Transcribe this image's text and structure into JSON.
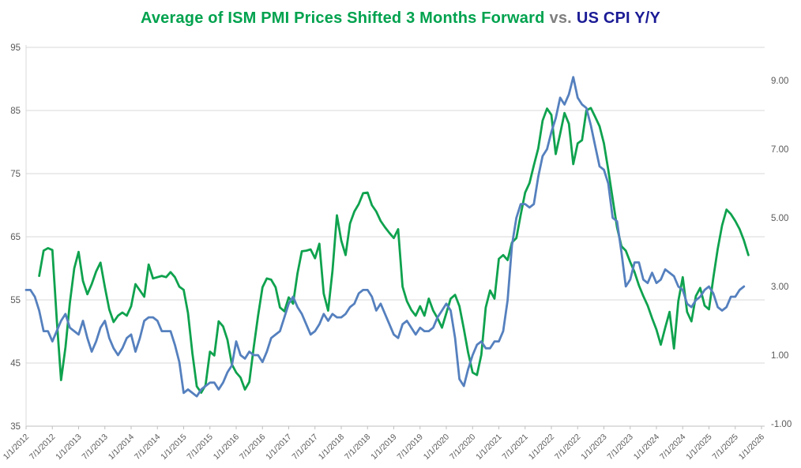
{
  "title": {
    "ism_part": "Average of ISM PMI Prices Shifted 3 Months Forward",
    "vs_part": "vs.",
    "cpi_part": "US CPI Y/Y"
  },
  "colors": {
    "ism_line": "#0FA24E",
    "cpi_line": "#5580BE",
    "title_ism": "#00A24E",
    "title_vs": "#7F7F7F",
    "title_cpi": "#1B1B96",
    "grid": "#D9D9D9",
    "axis_line": "#BFBFBF",
    "axis_text": "#595959",
    "background": "#FFFFFF"
  },
  "chart_data": {
    "type": "line",
    "title": "Average of ISM PMI Prices Shifted 3 Months Forward vs. US CPI Y/Y",
    "grid": "horizontal",
    "legend": "none",
    "x_axis": {
      "start": "1/1/2012",
      "end": "1/1/2026",
      "tick_interval_months": 6,
      "tick_labels": [
        "1/1/2012",
        "7/1/2012",
        "1/1/2013",
        "7/1/2013",
        "1/1/2014",
        "7/1/2014",
        "1/1/2015",
        "7/1/2015",
        "1/1/2016",
        "7/1/2016",
        "1/1/2017",
        "7/1/2017",
        "1/1/2018",
        "7/1/2018",
        "1/1/2019",
        "7/1/2019",
        "1/1/2020",
        "7/1/2020",
        "1/1/2021",
        "7/1/2021",
        "1/1/2022",
        "7/1/2022",
        "1/1/2023",
        "7/1/2023",
        "1/1/2024",
        "7/1/2024",
        "1/1/2025",
        "7/1/2025",
        "1/1/2026"
      ]
    },
    "left_axis": {
      "ticks": [
        95,
        85,
        75,
        65,
        55,
        45,
        35
      ],
      "range": [
        35,
        95
      ]
    },
    "right_axis": {
      "tick_labels": [
        "9.00",
        "7.00",
        "5.00",
        "3.00",
        "1.00",
        "-1.00"
      ],
      "range": [
        -1,
        9
      ]
    },
    "series": [
      {
        "name": "Average of ISM PMI Prices Shifted 3 Months Forward",
        "axis": "left",
        "color": "#0FA24E",
        "first_month": "4/1/2012",
        "month_offset_from_x_start": 3,
        "values": [
          58.8,
          62.8,
          63.2,
          62.9,
          52.0,
          42.3,
          47.5,
          54.5,
          60.0,
          62.6,
          58.0,
          55.9,
          57.5,
          59.5,
          60.9,
          57.0,
          53.5,
          51.5,
          52.5,
          53.0,
          52.5,
          54.0,
          57.5,
          56.5,
          55.5,
          60.6,
          58.4,
          58.6,
          58.8,
          58.6,
          59.4,
          58.6,
          57.1,
          56.6,
          52.9,
          46.5,
          41.3,
          40.3,
          41.5,
          46.8,
          46.2,
          51.6,
          50.8,
          48.7,
          44.8,
          43.5,
          42.7,
          40.8,
          42.0,
          47.5,
          52.5,
          57.0,
          58.4,
          58.2,
          57.0,
          53.8,
          53.2,
          55.4,
          54.4,
          59.2,
          62.7,
          62.8,
          63.0,
          61.6,
          63.9,
          56.0,
          53.3,
          59.6,
          68.4,
          64.4,
          62.1,
          67.1,
          69.0,
          70.2,
          71.9,
          72.0,
          70.0,
          69.0,
          67.5,
          66.5,
          65.6,
          64.8,
          66.2,
          57.1,
          54.8,
          53.4,
          52.5,
          54.0,
          52.5,
          55.2,
          53.3,
          52.1,
          50.6,
          52.9,
          55.2,
          55.8,
          54.0,
          50.4,
          46.6,
          43.5,
          43.1,
          46.3,
          53.8,
          56.5,
          55.2,
          61.5,
          62.1,
          61.3,
          64.1,
          64.8,
          68.5,
          72.0,
          73.5,
          76.3,
          79.0,
          83.4,
          85.3,
          84.3,
          78.1,
          81.3,
          84.6,
          82.9,
          76.5,
          79.8,
          80.3,
          85.0,
          85.4,
          84.0,
          82.5,
          79.8,
          75.6,
          71.0,
          66.5,
          63.5,
          62.8,
          61.0,
          59.4,
          57.3,
          55.6,
          54.1,
          52.1,
          50.3,
          47.9,
          50.6,
          53.1,
          47.3,
          54.8,
          58.6,
          53.1,
          51.6,
          55.6,
          56.9,
          54.1,
          53.5,
          58.5,
          63.1,
          66.8,
          69.3,
          68.6,
          67.5,
          66.2,
          64.4,
          62.1
        ]
      },
      {
        "name": "US CPI Y/Y",
        "axis": "right",
        "color": "#5580BE",
        "first_month": "1/1/2012",
        "month_offset_from_x_start": 0,
        "values": [
          2.9,
          2.9,
          2.7,
          2.3,
          1.7,
          1.7,
          1.4,
          1.7,
          2.0,
          2.2,
          1.8,
          1.7,
          1.6,
          2.0,
          1.5,
          1.1,
          1.4,
          1.8,
          2.0,
          1.5,
          1.2,
          1.0,
          1.2,
          1.5,
          1.6,
          1.1,
          1.5,
          2.0,
          2.1,
          2.1,
          2.0,
          1.7,
          1.7,
          1.7,
          1.3,
          0.8,
          -0.1,
          0.0,
          -0.1,
          -0.2,
          0.0,
          0.1,
          0.2,
          0.2,
          0.0,
          0.2,
          0.5,
          0.7,
          1.4,
          1.0,
          0.9,
          1.1,
          1.0,
          1.0,
          0.8,
          1.1,
          1.5,
          1.6,
          1.7,
          2.1,
          2.5,
          2.7,
          2.4,
          2.2,
          1.9,
          1.6,
          1.7,
          1.9,
          2.2,
          2.0,
          2.2,
          2.1,
          2.1,
          2.2,
          2.4,
          2.5,
          2.8,
          2.9,
          2.9,
          2.7,
          2.3,
          2.5,
          2.2,
          1.9,
          1.6,
          1.5,
          1.9,
          2.0,
          1.8,
          1.6,
          1.8,
          1.7,
          1.7,
          1.8,
          2.1,
          2.3,
          2.5,
          2.3,
          1.5,
          0.3,
          0.1,
          0.6,
          1.0,
          1.3,
          1.4,
          1.2,
          1.2,
          1.4,
          1.4,
          1.7,
          2.6,
          4.2,
          5.0,
          5.4,
          5.4,
          5.3,
          5.4,
          6.2,
          6.8,
          7.0,
          7.5,
          7.9,
          8.5,
          8.3,
          8.6,
          9.1,
          8.5,
          8.3,
          8.2,
          7.7,
          7.1,
          6.5,
          6.4,
          6.0,
          5.0,
          4.9,
          4.0,
          3.0,
          3.2,
          3.7,
          3.7,
          3.2,
          3.1,
          3.4,
          3.1,
          3.2,
          3.5,
          3.4,
          3.3,
          3.0,
          2.9,
          2.5,
          2.4,
          2.6,
          2.7,
          2.9,
          3.0,
          2.8,
          2.4,
          2.3,
          2.4,
          2.7,
          2.7,
          2.9,
          3.0
        ]
      }
    ]
  }
}
